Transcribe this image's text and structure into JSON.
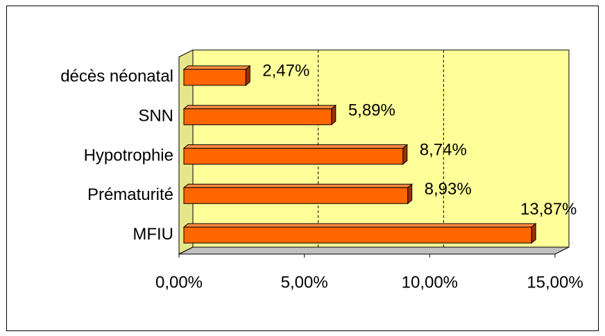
{
  "chart_data": {
    "type": "bar",
    "orientation": "horizontal",
    "categories": [
      "décès néonatal",
      "SNN",
      "Hypotrophie",
      "Prématurité",
      "MFIU"
    ],
    "values": [
      2.47,
      5.89,
      8.74,
      8.93,
      13.87
    ],
    "value_labels": [
      "2,47%",
      "5,89%",
      "8,74%",
      "8,93%",
      "13,87%"
    ],
    "color": "#ff6600",
    "xlim": [
      0,
      15
    ],
    "xticks": [
      {
        "value": 0,
        "label": "0,00%"
      },
      {
        "value": 5,
        "label": "5,00%"
      },
      {
        "value": 10,
        "label": "10,00%"
      },
      {
        "value": 15,
        "label": "15,00%"
      }
    ],
    "grid": true
  }
}
